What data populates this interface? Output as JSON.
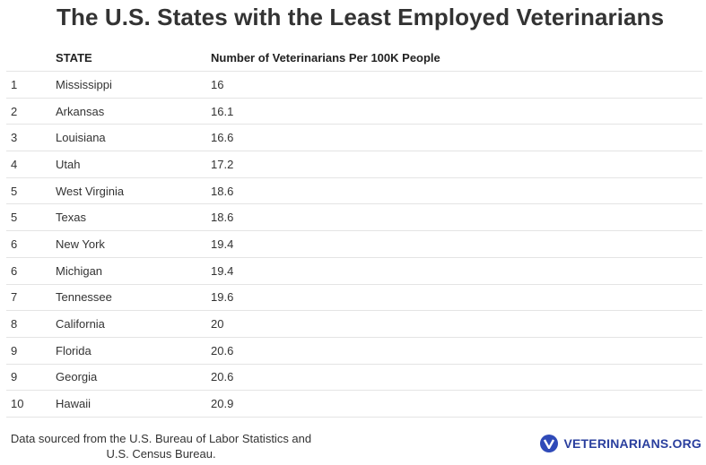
{
  "title": "The U.S. States with the Least Employed Veterinarians",
  "table": {
    "headers": {
      "rank": "",
      "state": "STATE",
      "number": "Number of Veterinarians Per 100K People"
    },
    "rows": [
      {
        "rank": "1",
        "state": "Mississippi",
        "value": "16"
      },
      {
        "rank": "2",
        "state": "Arkansas",
        "value": "16.1"
      },
      {
        "rank": "3",
        "state": "Louisiana",
        "value": "16.6"
      },
      {
        "rank": "4",
        "state": "Utah",
        "value": "17.2"
      },
      {
        "rank": "5",
        "state": "West Virginia",
        "value": "18.6"
      },
      {
        "rank": "5",
        "state": "Texas",
        "value": "18.6"
      },
      {
        "rank": "6",
        "state": "New York",
        "value": "19.4"
      },
      {
        "rank": "6",
        "state": "Michigan",
        "value": "19.4"
      },
      {
        "rank": "7",
        "state": "Tennessee",
        "value": "19.6"
      },
      {
        "rank": "8",
        "state": "California",
        "value": "20"
      },
      {
        "rank": "9",
        "state": "Florida",
        "value": "20.6"
      },
      {
        "rank": "9",
        "state": "Georgia",
        "value": "20.6"
      },
      {
        "rank": "10",
        "state": "Hawaii",
        "value": "20.9"
      }
    ]
  },
  "footer": {
    "source_line1": "Data sourced from the U.S. Bureau of Labor Statistics and",
    "source_line2": "U.S. Census Bureau.",
    "brand_text": "VETERINARIANS.ORG",
    "brand_icon": "v-logo-icon",
    "brand_color": "#2f4ab8"
  }
}
